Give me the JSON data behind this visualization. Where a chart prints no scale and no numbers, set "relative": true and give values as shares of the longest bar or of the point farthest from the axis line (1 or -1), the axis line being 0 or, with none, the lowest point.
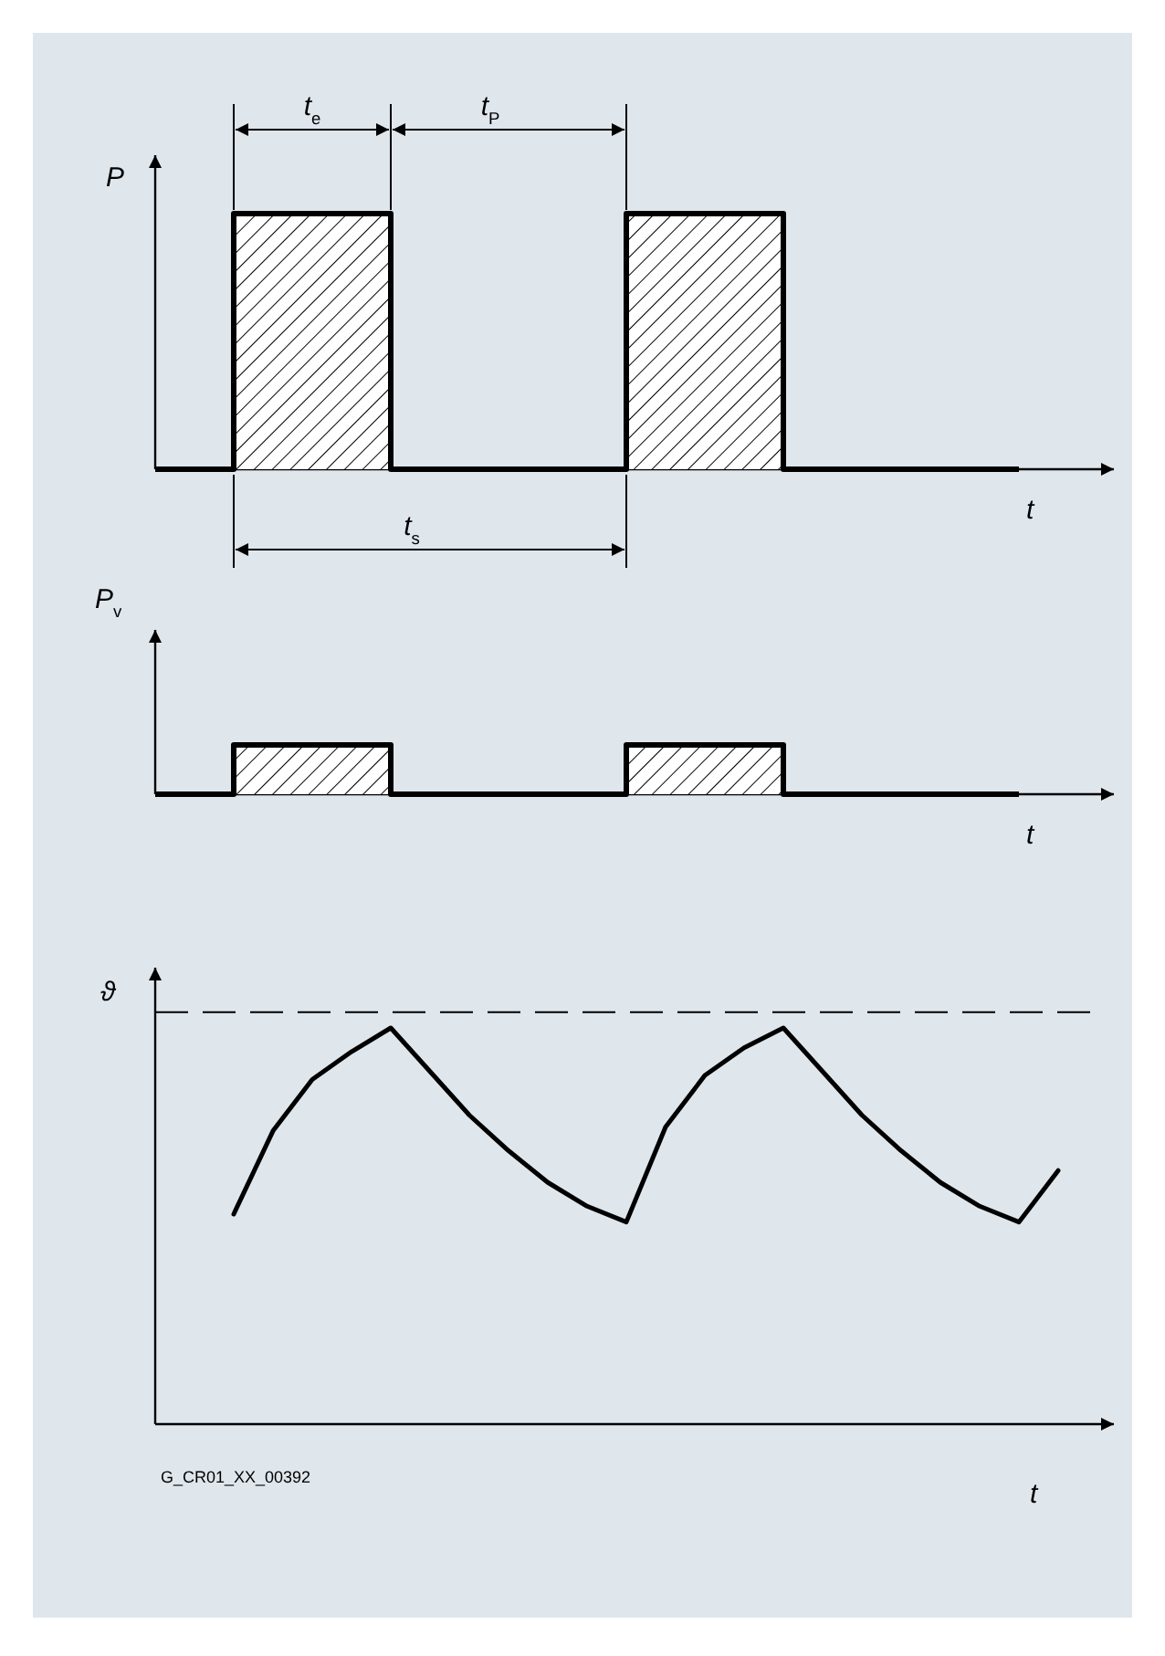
{
  "chart_data": [
    {
      "type": "step",
      "relative": true,
      "ylabel": "P",
      "xlabel": "t",
      "categories": [
        null,
        null,
        null,
        null,
        null,
        null,
        null,
        null,
        null,
        null,
        null,
        null,
        null,
        null,
        null,
        null,
        null,
        null,
        null,
        null,
        null,
        null,
        null
      ],
      "series": [
        {
          "color": "#000000",
          "values": [
            0,
            0,
            1,
            1,
            1,
            1,
            0,
            0,
            0,
            0,
            0,
            0,
            1,
            1,
            1,
            1,
            0,
            0,
            0,
            0,
            0,
            0,
            0
          ]
        }
      ],
      "annotations": [
        "t$_{e}$",
        "t$_{P}$",
        "t$_{s}$"
      ]
    },
    {
      "type": "step",
      "relative": true,
      "ylabel": "P$_{v}$",
      "xlabel": "t",
      "categories": [
        null,
        null,
        null,
        null,
        null,
        null,
        null,
        null,
        null,
        null,
        null,
        null,
        null,
        null,
        null,
        null,
        null,
        null,
        null,
        null,
        null,
        null,
        null
      ],
      "series": [
        {
          "color": "#000000",
          "values": [
            0,
            0,
            1,
            1,
            1,
            1,
            0,
            0,
            0,
            0,
            0,
            0,
            1,
            1,
            1,
            1,
            0,
            0,
            0,
            0,
            0,
            0,
            0
          ]
        }
      ]
    },
    {
      "type": "line",
      "relative": true,
      "ylabel": "ϑ",
      "xlabel": "t",
      "categories": [
        null,
        null,
        null,
        null,
        null,
        null,
        null,
        null,
        null,
        null,
        null,
        null,
        null,
        null,
        null,
        null,
        null,
        null,
        null,
        null,
        null,
        null,
        null,
        null
      ],
      "series": [
        {
          "color": "#000000",
          "values": [
            null,
            null,
            0.53,
            0.74,
            0.87,
            0.94,
            1,
            0.89,
            0.78,
            0.69,
            0.61,
            0.55,
            0.51,
            0.75,
            0.88,
            0.95,
            1,
            0.89,
            0.78,
            0.69,
            0.61,
            0.55,
            0.51,
            0.64
          ]
        }
      ],
      "ref_lines": [
        {
          "axis": "y",
          "value": 1.04,
          "color": "#000000",
          "line_style": "dashed"
        }
      ],
      "annotations": [
        "G_CR01_XX_00392"
      ]
    }
  ]
}
